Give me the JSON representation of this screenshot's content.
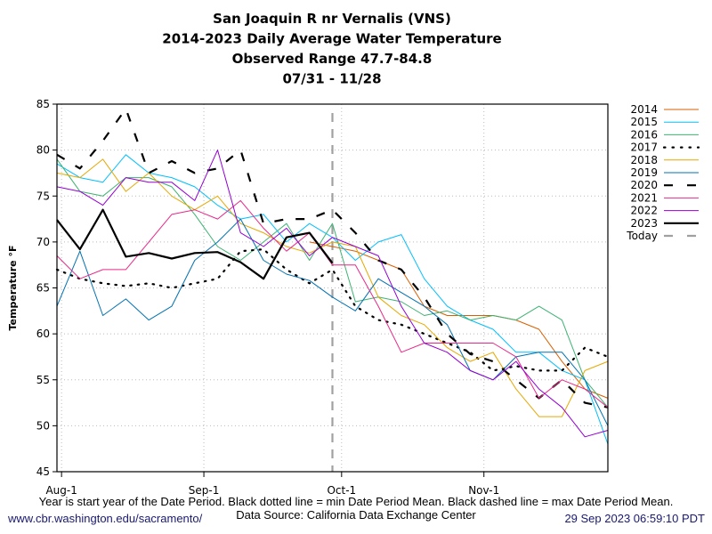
{
  "chart_data": {
    "type": "line",
    "title": [
      "San Joaquin R nr Vernalis (VNS)",
      "2014-2023 Daily Average Water Temperature",
      "Observed Range 47.7-84.8",
      "07/31 - 11/28"
    ],
    "ylabel": "Temperature °F",
    "xlabel": "",
    "ylim": [
      45,
      85
    ],
    "yticks": [
      45,
      50,
      55,
      60,
      65,
      70,
      75,
      80,
      85
    ],
    "xlim": [
      "07-31",
      "11-28"
    ],
    "xticks": [
      {
        "label": "Aug-1",
        "date": "08-01"
      },
      {
        "label": "Sep-1",
        "date": "09-01"
      },
      {
        "label": "Oct-1",
        "date": "10-01"
      },
      {
        "label": "Nov-1",
        "date": "11-01"
      }
    ],
    "grid": true,
    "legend_placement": "right",
    "x": [
      "07-31",
      "08-05",
      "08-10",
      "08-15",
      "08-20",
      "08-25",
      "08-30",
      "09-04",
      "09-09",
      "09-14",
      "09-19",
      "09-24",
      "09-29",
      "10-04",
      "10-09",
      "10-14",
      "10-19",
      "10-24",
      "10-29",
      "11-03",
      "11-08",
      "11-13",
      "11-18",
      "11-23",
      "11-28"
    ],
    "series": [
      {
        "name": "2014",
        "color": "#d95f02",
        "style": "solid",
        "values": [
          null,
          null,
          null,
          null,
          null,
          null,
          null,
          null,
          null,
          null,
          null,
          70,
          69.5,
          69,
          68,
          67,
          63,
          62,
          62,
          62,
          61.5,
          60.5,
          57,
          54,
          53
        ]
      },
      {
        "name": "2015",
        "color": "#00bfff",
        "style": "solid",
        "values": [
          78.5,
          77,
          76.5,
          79.5,
          77.5,
          77,
          76,
          74,
          72.5,
          73,
          70,
          72,
          70.5,
          68,
          70,
          70.8,
          66,
          63,
          61.5,
          60.5,
          58,
          58,
          56,
          55,
          48
        ]
      },
      {
        "name": "2016",
        "color": "#3cb371",
        "style": "solid",
        "values": [
          79,
          75.5,
          75,
          77,
          77,
          76,
          73,
          69.5,
          68,
          70,
          72,
          68,
          72,
          63.5,
          64,
          63.5,
          62,
          62.5,
          61.5,
          62,
          61.5,
          63,
          61.5,
          55,
          52
        ]
      },
      {
        "name": "2017",
        "color": "#000000",
        "style": "dotted",
        "values": [
          67,
          66,
          65.5,
          65.2,
          65.5,
          65,
          65.5,
          66,
          69,
          69.2,
          67,
          65.5,
          67,
          63,
          61.5,
          61,
          60,
          59,
          58,
          56,
          56.5,
          56,
          56,
          58.5,
          57.5
        ]
      },
      {
        "name": "2018",
        "color": "#e6a800",
        "style": "solid",
        "values": [
          77.5,
          77,
          79,
          75.5,
          77.5,
          75,
          73.5,
          75,
          72,
          71,
          69.5,
          68.8,
          70,
          69.5,
          64,
          62,
          61,
          58.5,
          57,
          58,
          54,
          51,
          51,
          56,
          57
        ]
      },
      {
        "name": "2019",
        "color": "#0072b2",
        "style": "solid",
        "values": [
          63,
          69,
          62,
          63.8,
          61.5,
          63,
          68,
          70,
          72.5,
          68,
          66.5,
          65.8,
          64,
          62.5,
          66,
          64.5,
          63,
          61,
          56,
          55,
          57.5,
          58,
          58,
          55,
          50
        ]
      },
      {
        "name": "2020",
        "color": "#000000",
        "style": "dashed",
        "values": [
          79.5,
          78,
          81,
          84.5,
          77.5,
          78.8,
          77.5,
          78,
          80,
          72,
          72.5,
          72.5,
          73.5,
          71,
          68,
          67,
          64,
          60,
          57.8,
          57,
          55,
          53,
          55,
          52.5,
          52
        ]
      },
      {
        "name": "2021",
        "color": "#e7298a",
        "style": "solid",
        "values": [
          68.5,
          66,
          67,
          67,
          70,
          73,
          73.5,
          72.5,
          74.5,
          71.5,
          69,
          71,
          67.5,
          67.5,
          63,
          58,
          59,
          59,
          59,
          59,
          57.5,
          53,
          55,
          54,
          52
        ]
      },
      {
        "name": "2022",
        "color": "#9400d3",
        "style": "solid",
        "values": [
          76,
          75.5,
          74,
          77,
          76.5,
          76.5,
          74.5,
          80,
          71,
          69.5,
          71.5,
          68.5,
          70.5,
          69.5,
          68.5,
          63,
          59,
          58,
          56,
          55,
          57,
          54,
          52,
          48.8,
          49.5
        ]
      },
      {
        "name": "2023",
        "color": "#000000",
        "style": "thick",
        "values": [
          72.4,
          69.2,
          73.5,
          68.4,
          68.8,
          68.2,
          68.8,
          68.9,
          67.8,
          66,
          70.5,
          71,
          67.7,
          null,
          null,
          null,
          null,
          null,
          null,
          null,
          null,
          null,
          null,
          null,
          null
        ]
      }
    ],
    "today": {
      "name": "Today",
      "date": "09-29",
      "color": "#a0a0a0",
      "style": "dashed"
    }
  },
  "footer": {
    "note": "Year is start year of the Date Period. Black dotted line = min Date Period Mean. Black dashed line = max Date Period Mean.",
    "source": "Data Source: California Data Exchange Center",
    "url": "www.cbr.washington.edu/sacramento/",
    "timestamp": "29 Sep 2023 06:59:10 PDT",
    "link_color": "#191970"
  }
}
